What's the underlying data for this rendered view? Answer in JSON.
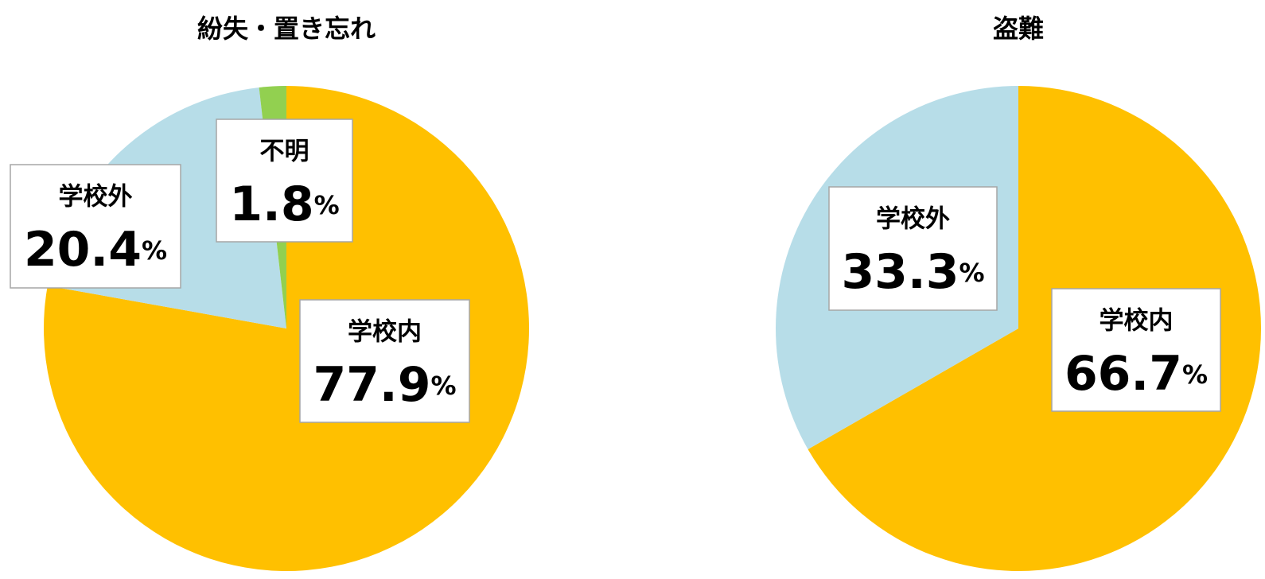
{
  "chart_data": [
    {
      "type": "pie",
      "title": "紛失・置き忘れ",
      "categories": [
        "学校内",
        "学校外",
        "不明"
      ],
      "values": [
        77.9,
        20.4,
        1.8
      ],
      "value_labels": [
        "77.9%",
        "20.4%",
        "1.8%"
      ],
      "colors": [
        "#ffc000",
        "#b7dde8",
        "#92d050"
      ]
    },
    {
      "type": "pie",
      "title": "盗難",
      "categories": [
        "学校内",
        "学校外"
      ],
      "values": [
        66.7,
        33.3
      ],
      "value_labels": [
        "66.7%",
        "33.3%"
      ],
      "colors": [
        "#ffc000",
        "#b7dde8"
      ]
    }
  ]
}
